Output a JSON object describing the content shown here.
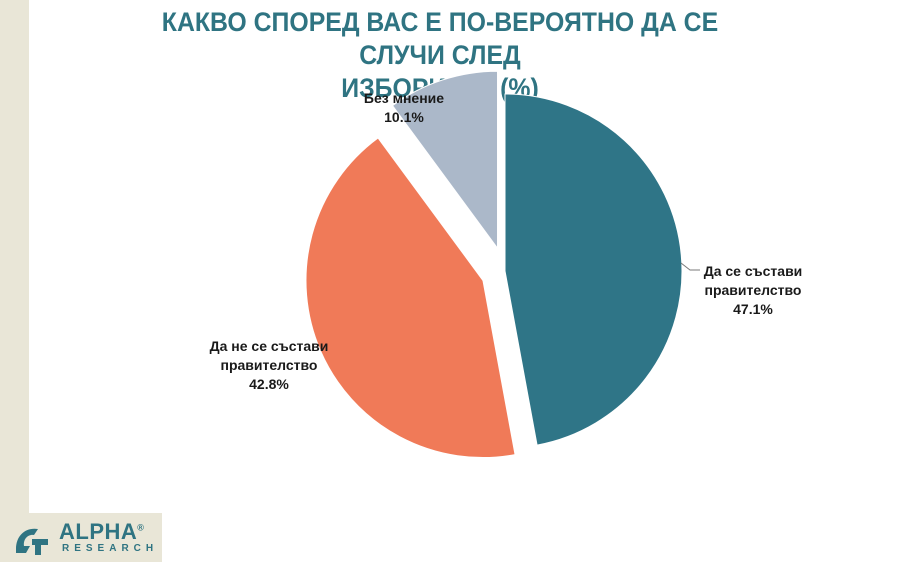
{
  "title": {
    "line1": "КАКВО СПОРЕД ВАС Е ПО-ВЕРОЯТНО ДА СЕ СЛУЧИ СЛЕД",
    "line2": "ИЗБОРИТЕ? (%)"
  },
  "chart_data": {
    "type": "pie",
    "title": "КАКВО СПОРЕД ВАС Е ПО-ВЕРОЯТНО ДА СЕ СЛУЧИ СЛЕД ИЗБОРИТЕ? (%)",
    "unit": "%",
    "slices": [
      {
        "label_lines": [
          "Да се състави",
          "правителство"
        ],
        "value": 47.1,
        "value_label": "47.1%",
        "color": "#2f7587",
        "exploded": false
      },
      {
        "label_lines": [
          "Да не се състави",
          "правителство"
        ],
        "value": 42.8,
        "value_label": "42.8%",
        "color": "#f07a58",
        "exploded": true
      },
      {
        "label_lines": [
          "Без мнение"
        ],
        "value": 10.1,
        "value_label": "10.1%",
        "color": "#abb8c9",
        "exploded": true
      }
    ],
    "start_angle_deg": 0,
    "direction": "clockwise",
    "legend": "none",
    "data_labels": "outside"
  },
  "colors": {
    "title": "#2f7482",
    "side_band": "#e9e6d7",
    "logo": "#2f7482"
  },
  "logo": {
    "word": "ALPHA",
    "registered": "®",
    "sub": "RESEARCH"
  }
}
